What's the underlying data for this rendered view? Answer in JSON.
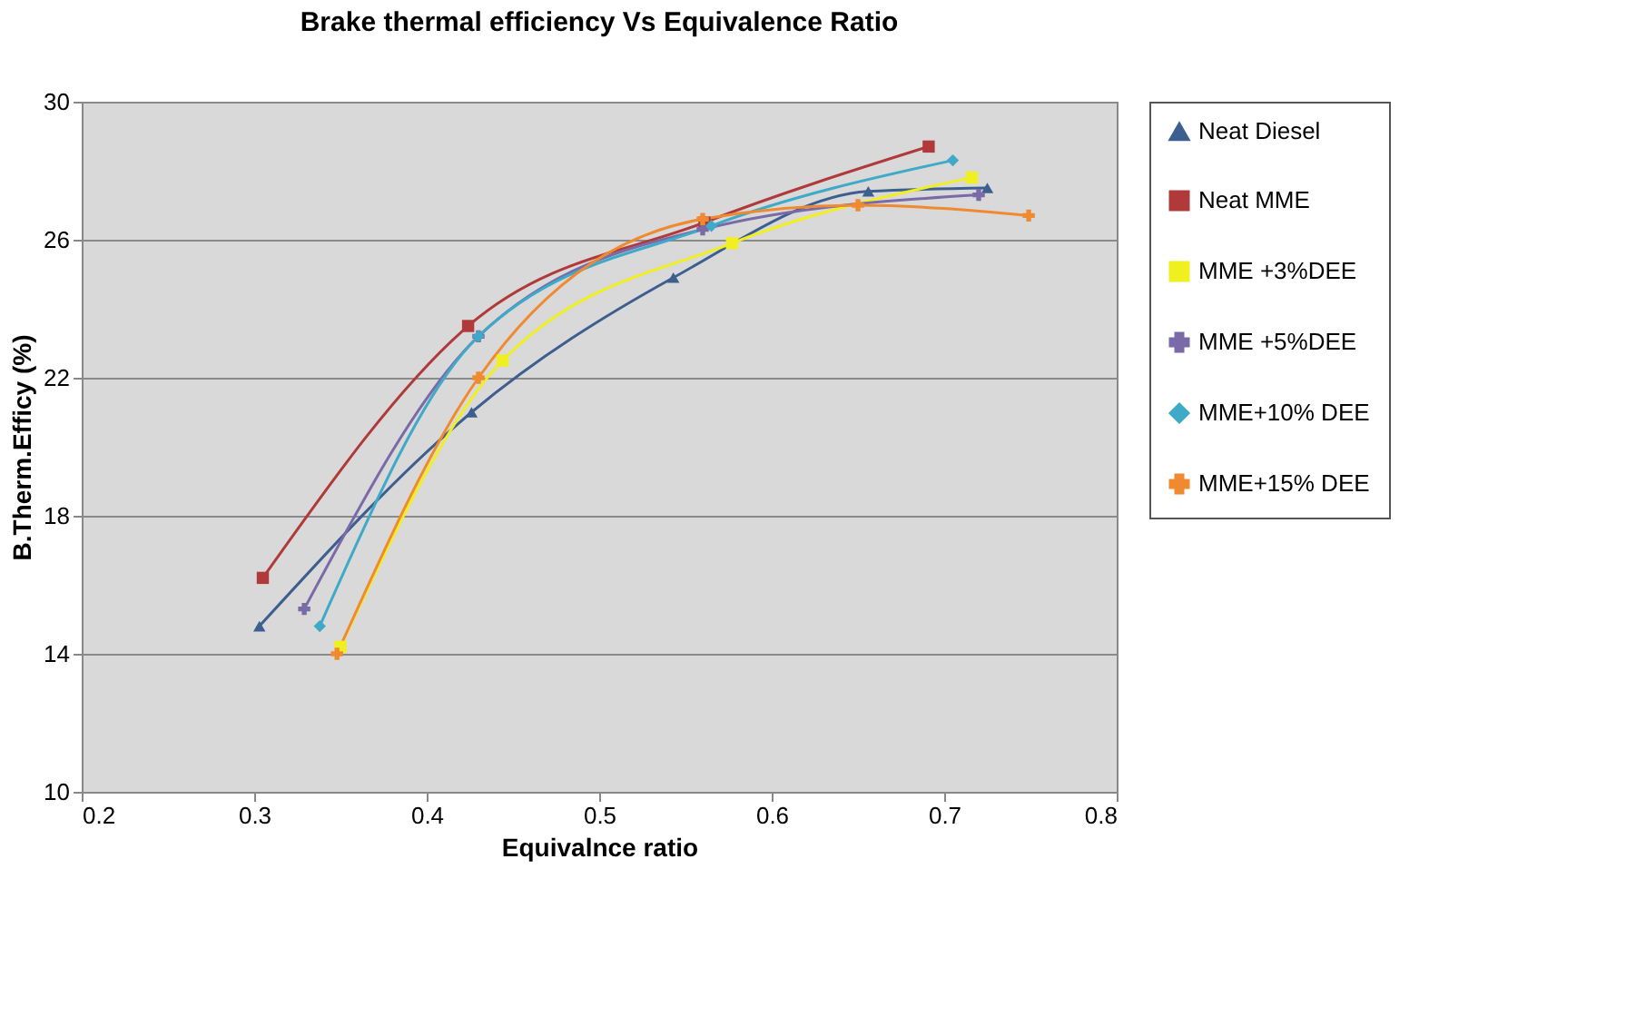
{
  "chart_data": {
    "type": "line",
    "title": "Brake thermal efficiency Vs  Equivalence Ratio",
    "xlabel": "Equivalnce ratio",
    "ylabel": "B.Therm.Efficy (%)",
    "xlim": [
      0.2,
      0.8
    ],
    "xticks": [
      0.2,
      0.3,
      0.4,
      0.5,
      0.6,
      0.7,
      0.8
    ],
    "ylim": [
      10,
      30
    ],
    "yticks": [
      10,
      14,
      18,
      22,
      26,
      30
    ],
    "grid": "y",
    "legend": "right",
    "series": [
      {
        "name": "Neat Diesel",
        "color": "#3c5f8f",
        "marker": "triangle",
        "x": [
          0.303,
          0.426,
          0.543,
          0.656,
          0.725
        ],
        "values": [
          14.8,
          21.0,
          24.9,
          27.4,
          27.5
        ]
      },
      {
        "name": "Neat MME",
        "color": "#b03a3a",
        "marker": "square",
        "x": [
          0.305,
          0.424,
          0.561,
          0.691
        ],
        "values": [
          16.2,
          23.5,
          26.5,
          28.7
        ]
      },
      {
        "name": "MME +3%DEE",
        "color": "#f0f020",
        "marker": "square",
        "x": [
          0.35,
          0.444,
          0.577,
          0.716
        ],
        "values": [
          14.2,
          22.5,
          25.9,
          27.8
        ]
      },
      {
        "name": "MME +5%DEE",
        "color": "#7a6aa8",
        "marker": "cross",
        "x": [
          0.329,
          0.43,
          0.56,
          0.72
        ],
        "values": [
          15.3,
          23.2,
          26.3,
          27.3
        ]
      },
      {
        "name": "MME+10% DEE",
        "color": "#3fa9c8",
        "marker": "diamond",
        "x": [
          0.338,
          0.43,
          0.565,
          0.705
        ],
        "values": [
          14.8,
          23.2,
          26.4,
          28.3
        ]
      },
      {
        "name": "MME+15% DEE",
        "color": "#f08a30",
        "marker": "cross",
        "x": [
          0.348,
          0.43,
          0.56,
          0.65,
          0.749
        ],
        "values": [
          14.0,
          22.0,
          26.6,
          27.0,
          26.7
        ]
      }
    ]
  }
}
